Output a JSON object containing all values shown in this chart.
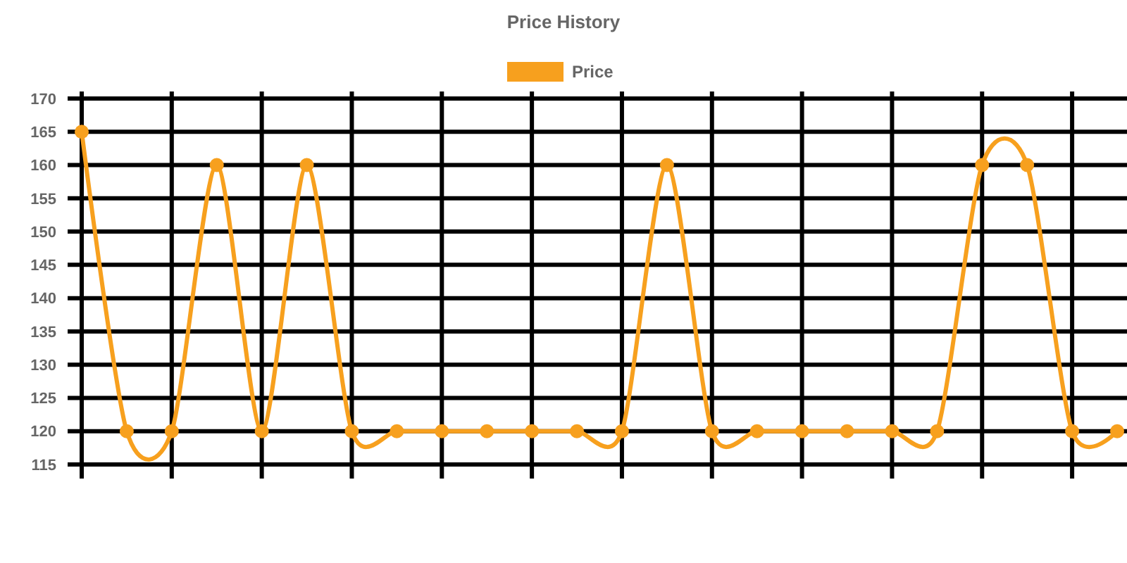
{
  "chart_data": {
    "type": "line",
    "legend_title": "Price History",
    "legend": "top",
    "categories": [
      null,
      null,
      null,
      null,
      null,
      null,
      null,
      null,
      null,
      null,
      null,
      null,
      null,
      null,
      null,
      null,
      null,
      null,
      null,
      null,
      null,
      null,
      null,
      null
    ],
    "series": [
      {
        "name": "Price",
        "color": "#f7a01e",
        "values": [
          165,
          120,
          120,
          160,
          120,
          160,
          120,
          120,
          120,
          120,
          120,
          120,
          120,
          160,
          120,
          120,
          120,
          120,
          120,
          120,
          160,
          160,
          120,
          120
        ]
      }
    ],
    "ylim": [
      115,
      170
    ],
    "yticks": [
      115,
      120,
      125,
      130,
      135,
      140,
      145,
      150,
      155,
      160,
      165,
      170
    ],
    "grid": true,
    "marker": "circle",
    "line_style": "solid"
  }
}
